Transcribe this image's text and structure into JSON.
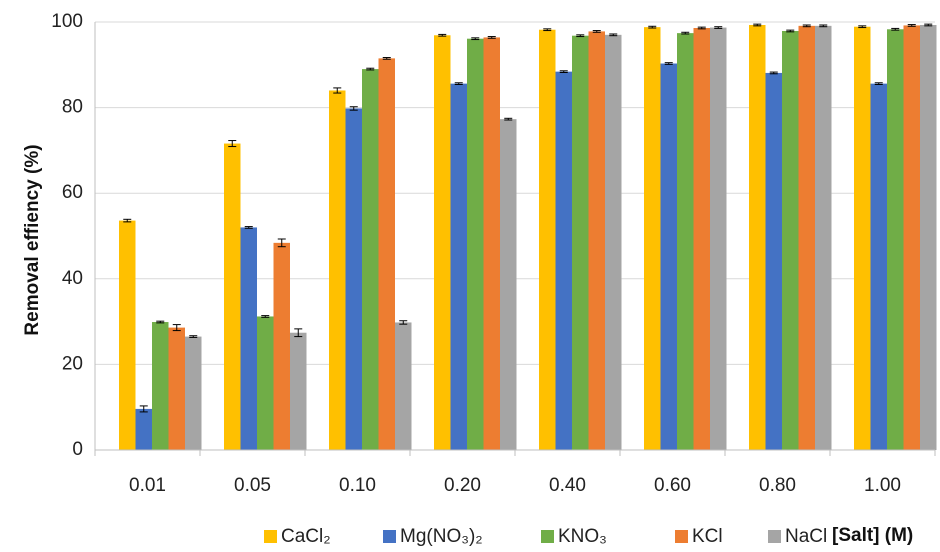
{
  "chart_data": {
    "type": "bar",
    "title": "",
    "xlabel": "[Salt] (M)",
    "ylabel": "Removal effiency (%)",
    "ylim": [
      0,
      100
    ],
    "yticks": [
      0,
      20,
      40,
      60,
      80,
      100
    ],
    "categories": [
      "0.01",
      "0.05",
      "0.10",
      "0.20",
      "0.40",
      "0.60",
      "0.80",
      "1.00"
    ],
    "grid": "horizontal major gridlines",
    "legend_position": "bottom",
    "series": [
      {
        "name": "CaCl₂",
        "color": "#FFC000",
        "values": [
          53.6,
          71.6,
          84.0,
          96.9,
          98.2,
          98.8,
          99.3,
          98.9
        ],
        "errors": [
          0.3,
          0.7,
          0.6,
          0.2,
          0.2,
          0.2,
          0.2,
          0.2
        ]
      },
      {
        "name": "Mg(NO₃)₂",
        "color": "#4472C4",
        "values": [
          9.6,
          52.0,
          79.8,
          85.6,
          88.4,
          90.3,
          88.1,
          85.6
        ],
        "errors": [
          0.7,
          0.2,
          0.4,
          0.2,
          0.2,
          0.2,
          0.2,
          0.2
        ]
      },
      {
        "name": "KNO₃",
        "color": "#70AD47",
        "values": [
          29.9,
          31.2,
          89.0,
          96.1,
          96.8,
          97.4,
          97.9,
          98.3
        ],
        "errors": [
          0.2,
          0.2,
          0.2,
          0.2,
          0.2,
          0.2,
          0.2,
          0.2
        ]
      },
      {
        "name": "KCl",
        "color": "#ED7D31",
        "values": [
          28.6,
          48.4,
          91.5,
          96.4,
          97.8,
          98.6,
          99.1,
          99.2
        ],
        "errors": [
          0.7,
          0.9,
          0.2,
          0.2,
          0.2,
          0.2,
          0.2,
          0.2
        ]
      },
      {
        "name": "NaCl",
        "color": "#A5A5A5",
        "values": [
          26.5,
          27.4,
          29.8,
          77.3,
          97.0,
          98.7,
          99.1,
          99.3
        ],
        "errors": [
          0.2,
          0.9,
          0.4,
          0.2,
          0.2,
          0.2,
          0.2,
          0.2
        ]
      }
    ]
  }
}
